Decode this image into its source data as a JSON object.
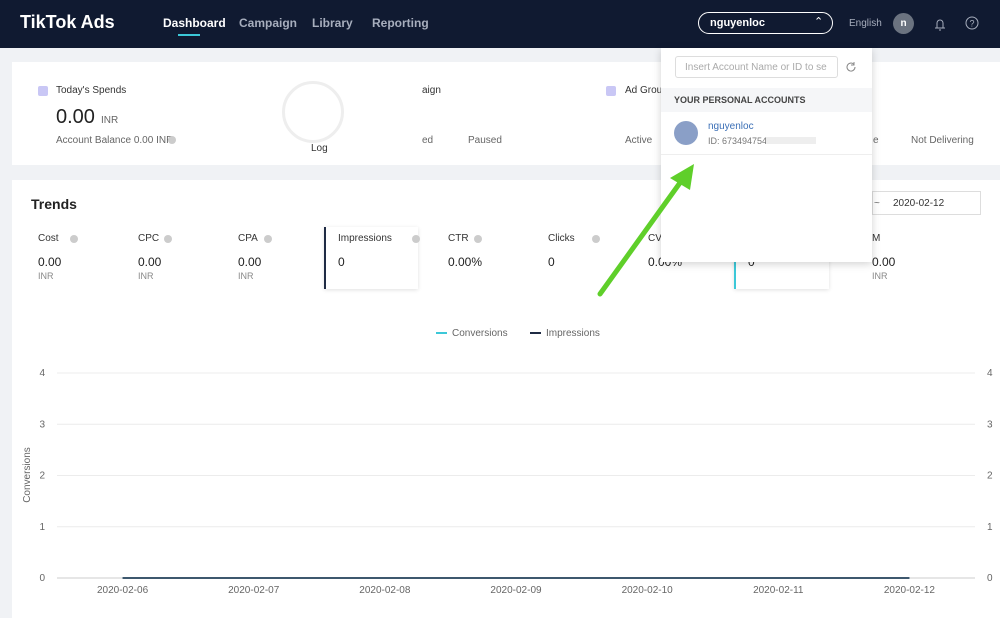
{
  "nav": {
    "brand": "TikTok Ads",
    "tabs": [
      "Dashboard",
      "Campaign",
      "Library",
      "Reporting"
    ],
    "account": "nguyenloc",
    "language": "English",
    "avatar": "n"
  },
  "summary": {
    "spends_label": "Today's Spends",
    "spends_value": "0.00",
    "spends_unit": "INR",
    "balance": "Account Balance 0.00 INR",
    "log": "Log",
    "campaign_label": "aign",
    "campaign_status_1": "ed",
    "campaign_status_2": "Paused",
    "adgroup_label": "Ad Group",
    "adgroup_status_1": "Active",
    "adgroup_status_2": "e",
    "adgroup_status_3": "Not Delivering"
  },
  "dropdown": {
    "search_placeholder": "Insert Account Name or ID to se",
    "section": "YOUR PERSONAL ACCOUNTS",
    "account_name": "nguyenloc",
    "account_id": "ID: 673494754"
  },
  "trends": {
    "title": "Trends",
    "date_separator": "~",
    "date_end": "2020-02-12",
    "metrics": [
      {
        "label": "Cost",
        "value": "0.00",
        "unit": "INR"
      },
      {
        "label": "CPC",
        "value": "0.00",
        "unit": "INR"
      },
      {
        "label": "CPA",
        "value": "0.00",
        "unit": "INR"
      },
      {
        "label": "Impressions",
        "value": "0"
      },
      {
        "label": "CTR",
        "value": "0.00%"
      },
      {
        "label": "Clicks",
        "value": "0"
      },
      {
        "label": "CV",
        "value": "0.00%"
      },
      {
        "value": "0"
      },
      {
        "label": "M",
        "value": "0.00",
        "unit": "INR"
      }
    ]
  },
  "chart_data": {
    "type": "line",
    "y_label": "Conversions",
    "categories": [
      "2020-02-06",
      "2020-02-07",
      "2020-02-08",
      "2020-02-09",
      "2020-02-10",
      "2020-02-11",
      "2020-02-12"
    ],
    "series": [
      {
        "name": "Conversions",
        "color": "#3cc8d8",
        "values": [
          0,
          0,
          0,
          0,
          0,
          0,
          0
        ]
      },
      {
        "name": "Impressions",
        "color": "#1f2b44",
        "axis": "y2",
        "values": [
          0,
          0,
          0,
          0,
          0,
          0,
          0
        ]
      }
    ],
    "ylim": [
      0,
      4
    ],
    "yticks": [
      0,
      1,
      2,
      3,
      4
    ],
    "y2lim": [
      0,
      4
    ],
    "y2ticks": [
      0,
      1,
      2,
      3,
      4
    ],
    "grid": true
  }
}
